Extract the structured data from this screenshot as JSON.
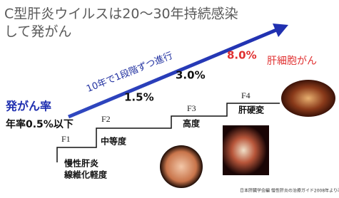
{
  "title": {
    "line1": "C型肝炎ウイルスは20～30年持続感染",
    "line2": "して発がん"
  },
  "progression_label": "10年で1段階ずつ進行",
  "rate": {
    "label": "発がん率",
    "base": "年率0.5%以下"
  },
  "stages": [
    {
      "stage": "F1",
      "name": "慢性肝炎",
      "note": "線維化軽度"
    },
    {
      "stage": "F2",
      "name": "中等度",
      "rate": "1.5%"
    },
    {
      "stage": "F3",
      "name": "高度",
      "rate": "3.0%"
    },
    {
      "stage": "F4",
      "name": "肝硬変",
      "rate": "8.0%"
    }
  ],
  "endpoint": "肝細胞がん",
  "source": "日本肝臓学会編 慢性肝炎の治療ガイド2008年より改変"
}
